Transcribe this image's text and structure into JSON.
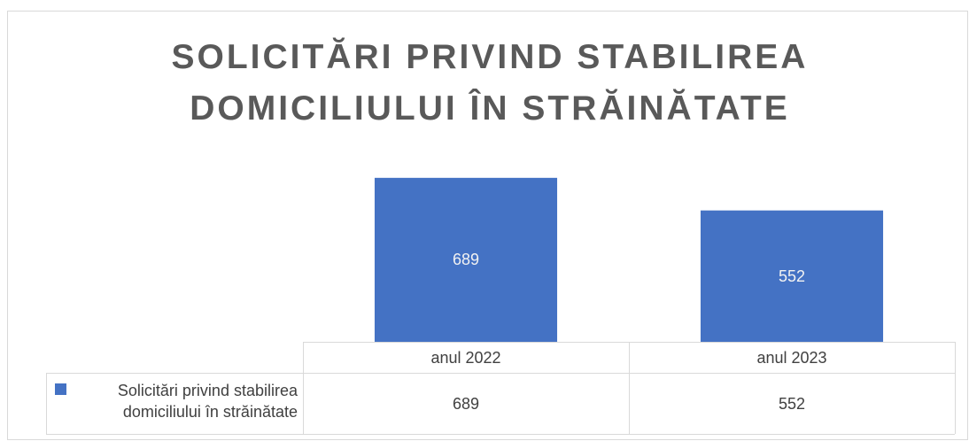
{
  "chart_data": {
    "type": "bar",
    "title": "SOLICITĂRI PRIVIND STABILIREA DOMICILIULUI ÎN STRĂINĂTATE",
    "categories": [
      "anul 2022",
      "anul 2023"
    ],
    "series": [
      {
        "name": "Solicitări privind stabilirea domiciliului în străinătate",
        "color": "#4472c4",
        "values": [
          689,
          552
        ]
      }
    ],
    "ylim": [
      0,
      800
    ],
    "data_labels": true,
    "data_table": true
  }
}
